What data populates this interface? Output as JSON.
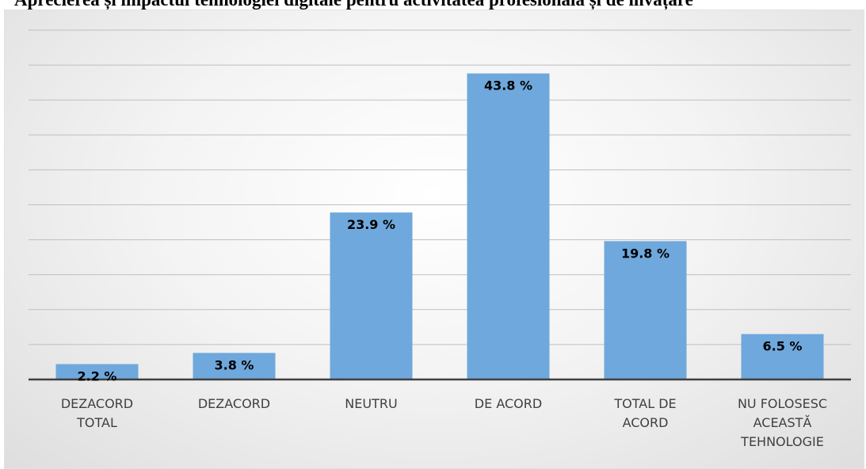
{
  "title": "Aprecierea și impactul tehnologiei digitale pentru activitatea profesională și de învățare",
  "chart_data": {
    "type": "bar",
    "categories": [
      "DEZACORD TOTAL",
      "DEZACORD",
      "NEUTRU",
      "DE ACORD",
      "TOTAL  DE ACORD",
      "NU FOLOSESC ACEASTĂ TEHNOLOGIE"
    ],
    "category_lines": [
      [
        "DEZACORD",
        "TOTAL"
      ],
      [
        "DEZACORD"
      ],
      [
        "NEUTRU"
      ],
      [
        "DE ACORD"
      ],
      [
        "TOTAL  DE",
        "ACORD"
      ],
      [
        "NU FOLOSESC",
        "ACEASTĂ",
        "TEHNOLOGIE"
      ]
    ],
    "values": [
      2.2,
      3.8,
      23.9,
      43.8,
      19.8,
      6.5
    ],
    "data_labels": [
      "2.2 %",
      "3.8 %",
      "23.9 %",
      "43.8 %",
      "19.8 %",
      "6.5 %"
    ],
    "ylim": [
      0,
      50
    ],
    "grid": true,
    "bar_color": "#6fa8dc",
    "xlabel": "",
    "ylabel": ""
  }
}
